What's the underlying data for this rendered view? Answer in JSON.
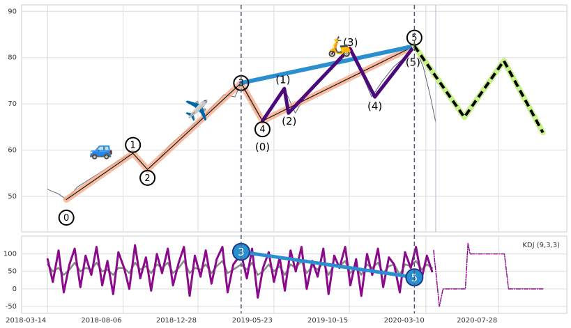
{
  "chart_data": [
    {
      "type": "line",
      "xlim": [
        "2018-01-23",
        "2020-12-06"
      ],
      "ylim": [
        42.3,
        91.4
      ],
      "yticks": [
        50,
        60,
        70,
        80,
        90
      ],
      "grid": true,
      "series": [
        {
          "color": "#5a6378",
          "x": [
            "2018-03-14",
            "2018-04-04",
            "2018-04-19",
            "2018-05-10",
            "2018-05-31",
            "2018-06-21",
            "2018-07-12",
            "2018-08-02",
            "2018-08-25",
            "2018-09-22",
            "2018-10-13",
            "2018-11-03",
            "2018-11-24",
            "2018-12-15",
            "2019-01-05",
            "2019-01-26",
            "2019-02-16",
            "2019-03-09",
            "2019-03-21",
            "2019-04-10",
            "2019-05-01",
            "2019-05-22",
            "2019-06-12",
            "2019-07-03",
            "2019-07-24",
            "2019-08-14",
            "2019-09-04",
            "2019-09-25",
            "2019-10-16",
            "2019-11-06",
            "2019-11-27",
            "2019-12-18",
            "2020-01-08",
            "2020-01-29",
            "2020-02-17",
            "2020-03-05",
            "2020-03-18",
            "2020-03-29"
          ],
          "values": [
            51.5,
            50.5,
            49.3,
            52,
            53.5,
            55,
            56.5,
            58,
            59.3,
            55.8,
            58,
            61,
            63,
            65,
            67,
            69.5,
            72,
            71.5,
            74.5,
            70,
            66.3,
            70,
            73.3,
            68,
            72,
            75,
            77,
            80,
            82,
            77,
            71.5,
            75,
            78,
            80,
            82.5,
            78,
            72,
            66
          ]
        }
      ],
      "waves": [
        {
          "label": "0",
          "x": "2018-04-19",
          "y": 49.3
        },
        {
          "label": "1",
          "x": "2018-08-25",
          "y": 59.3
        },
        {
          "label": "2",
          "x": "2018-09-22",
          "y": 55.8
        },
        {
          "label": "3",
          "x": "2019-03-21",
          "y": 74.5
        },
        {
          "label": "4",
          "x": "2019-05-01",
          "y": 66.3
        },
        {
          "label": "5",
          "x": "2020-02-17",
          "y": 82.5
        }
      ],
      "sub_waves": [
        {
          "label": "(0)",
          "x": "2019-05-01",
          "y": 66.3
        },
        {
          "label": "(1)",
          "x": "2019-06-12",
          "y": 73.3
        },
        {
          "label": "(2)",
          "x": "2019-06-20",
          "y": 68
        },
        {
          "label": "(3)",
          "x": "2019-10-16",
          "y": 82
        },
        {
          "label": "(4)",
          "x": "2019-12-03",
          "y": 71.5
        },
        {
          "label": "(5)",
          "x": "2020-02-17",
          "y": 82.5
        }
      ],
      "forecast": {
        "x": [
          "2020-05-23",
          "2020-08-07",
          "2020-10-21"
        ],
        "values": [
          67.1,
          79.3,
          63.8
        ]
      },
      "annotations": [
        "🚙",
        "✈️",
        "🛵"
      ]
    },
    {
      "type": "line",
      "title": "KDJ (9,3,3)",
      "xlim": [
        "2018-01-23",
        "2020-12-06"
      ],
      "ylim": [
        -70,
        151
      ],
      "yticks": [
        -50,
        0,
        50,
        100
      ],
      "grid": true,
      "xticks": [
        "2018-03-14",
        "2018-08-06",
        "2018-12-28",
        "2019-05-23",
        "2019-10-15",
        "2020-03-10",
        "2020-07-28"
      ],
      "x": [
        "2018-03-14",
        "2018-03-24",
        "2018-04-04",
        "2018-04-14",
        "2018-04-25",
        "2018-05-05",
        "2018-05-16",
        "2018-05-26",
        "2018-06-06",
        "2018-06-16",
        "2018-06-27",
        "2018-07-07",
        "2018-07-18",
        "2018-07-28",
        "2018-08-08",
        "2018-08-18",
        "2018-08-29",
        "2018-09-08",
        "2018-09-19",
        "2018-09-29",
        "2018-10-10",
        "2018-10-20",
        "2018-10-31",
        "2018-11-10",
        "2018-11-21",
        "2018-12-01",
        "2018-12-12",
        "2018-12-22",
        "2019-01-02",
        "2019-01-12",
        "2019-01-23",
        "2019-02-02",
        "2019-02-13",
        "2019-02-23",
        "2019-03-06",
        "2019-03-21",
        "2019-04-01",
        "2019-04-11",
        "2019-04-22",
        "2019-05-02",
        "2019-05-13",
        "2019-05-23",
        "2019-06-03",
        "2019-06-13",
        "2019-06-24",
        "2019-07-04",
        "2019-07-15",
        "2019-07-25",
        "2019-08-05",
        "2019-08-15",
        "2019-08-26",
        "2019-09-05",
        "2019-09-16",
        "2019-09-26",
        "2019-10-07",
        "2019-10-17",
        "2019-10-28",
        "2019-11-07",
        "2019-11-18",
        "2019-11-28",
        "2019-12-09",
        "2019-12-19",
        "2019-12-30",
        "2020-01-09",
        "2020-01-20",
        "2020-01-30",
        "2020-02-10",
        "2020-02-20",
        "2020-03-02",
        "2020-03-12",
        "2020-03-22"
      ],
      "series": [
        {
          "color": "#8b0a8b",
          "values": [
            85,
            20,
            110,
            -10,
            70,
            115,
            5,
            95,
            40,
            120,
            10,
            80,
            -15,
            105,
            60,
            0,
            125,
            30,
            90,
            -5,
            100,
            45,
            115,
            10,
            75,
            120,
            -20,
            95,
            35,
            110,
            15,
            85,
            120,
            -10,
            70,
            100,
            30,
            115,
            -25,
            60,
            105,
            20,
            90,
            -5,
            110,
            50,
            120,
            0,
            80,
            35,
            115,
            -15,
            95,
            60,
            120,
            10,
            85,
            -20,
            100,
            40,
            115,
            5,
            90,
            70,
            -10,
            105,
            60,
            120,
            30,
            95,
            50
          ]
        },
        {
          "color": "#888888",
          "values": [
            70,
            50,
            60,
            40,
            55,
            75,
            50,
            60,
            55,
            75,
            50,
            55,
            40,
            60,
            60,
            45,
            75,
            55,
            65,
            45,
            70,
            60,
            75,
            45,
            60,
            80,
            45,
            60,
            55,
            70,
            45,
            65,
            80,
            45,
            55,
            70,
            55,
            75,
            40,
            50,
            70,
            50,
            65,
            40,
            70,
            60,
            80,
            45,
            65,
            55,
            75,
            40,
            70,
            65,
            80,
            45,
            65,
            40,
            70,
            60,
            75,
            45,
            65,
            70,
            40,
            70,
            65,
            80,
            55,
            70,
            60
          ]
        }
      ],
      "markers": [
        {
          "label": "3",
          "x": "2019-03-21",
          "y": 106
        },
        {
          "label": "5",
          "x": "2020-02-17",
          "y": 33
        }
      ],
      "forecast": {
        "color": "#8b0a8b",
        "x": [
          "2020-03-25",
          "2020-04-05",
          "2020-04-12",
          "2020-05-25",
          "2020-05-30",
          "2020-06-03",
          "2020-08-08",
          "2020-08-16",
          "2020-10-21"
        ],
        "values": [
          110,
          -50,
          0,
          0,
          130,
          100,
          100,
          0,
          0
        ]
      }
    }
  ]
}
